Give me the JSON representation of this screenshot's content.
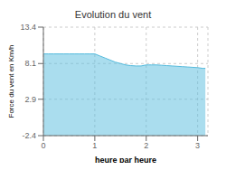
{
  "chart_data": {
    "type": "area",
    "title": "Evolution du vent",
    "xlabel": "heure par heure",
    "ylabel": "Force du vent en Km/h",
    "x": [
      0.0,
      0.1,
      0.2,
      0.3,
      0.4,
      0.5,
      0.6,
      0.7,
      0.8,
      0.9,
      1.0,
      1.1,
      1.2,
      1.3,
      1.4,
      1.5,
      1.6,
      1.7,
      1.8,
      1.9,
      2.0,
      2.05,
      2.1,
      2.2,
      2.3,
      2.4,
      2.5,
      2.6,
      2.7,
      2.8,
      2.9,
      3.0,
      3.1,
      3.15
    ],
    "values": [
      9.5,
      9.5,
      9.5,
      9.5,
      9.5,
      9.5,
      9.5,
      9.5,
      9.5,
      9.5,
      9.5,
      9.2,
      8.9,
      8.6,
      8.3,
      8.1,
      7.9,
      7.8,
      7.75,
      7.75,
      7.9,
      7.9,
      7.9,
      7.9,
      7.85,
      7.8,
      7.75,
      7.7,
      7.65,
      7.6,
      7.55,
      7.5,
      7.4,
      7.4
    ],
    "color": "#55bbdd",
    "xlim": [
      0,
      3.2
    ],
    "ylim": [
      -2.4,
      13.4
    ],
    "xticks": [
      0,
      1,
      2,
      3
    ],
    "yticks": [
      -2.4,
      2.9,
      8.1,
      13.4
    ],
    "grid": true
  }
}
